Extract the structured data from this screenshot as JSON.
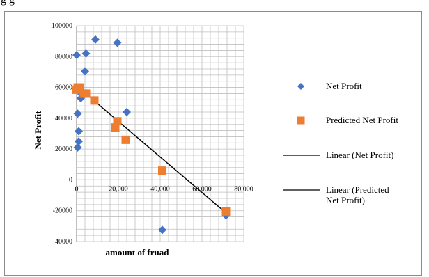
{
  "page": {
    "top_text": "g g"
  },
  "chart_data": {
    "type": "scatter",
    "title": "",
    "xlabel": "amount of fruad",
    "ylabel": "Net Profit",
    "xlim": [
      0,
      80000
    ],
    "ylim": [
      -40000,
      100000
    ],
    "x_ticks": [
      0,
      20000,
      40000,
      60000,
      80000
    ],
    "x_tick_labels": [
      "0",
      "20,000",
      "40,000",
      "60,000",
      "80,000"
    ],
    "y_ticks": [
      -40000,
      -20000,
      0,
      20000,
      40000,
      60000,
      80000,
      100000
    ],
    "y_tick_labels": [
      "-40000",
      "-20000",
      "0",
      "20000",
      "40000",
      "60000",
      "80000",
      "100000"
    ],
    "grid": true,
    "legend_position": "right",
    "colors": {
      "net_profit": "#4472C4",
      "predicted": "#ED7D31",
      "trendline": "#000000",
      "grid": "#bfbfbf"
    },
    "series": [
      {
        "name": "Net Profit",
        "marker": "diamond",
        "points": [
          [
            0,
            81000
          ],
          [
            4500,
            82000
          ],
          [
            9000,
            91000
          ],
          [
            19500,
            89000
          ],
          [
            4000,
            70500
          ],
          [
            1000,
            57500
          ],
          [
            2000,
            53000
          ],
          [
            500,
            43000
          ],
          [
            1000,
            31500
          ],
          [
            1000,
            25000
          ],
          [
            500,
            21000
          ],
          [
            24000,
            44000
          ],
          [
            41000,
            -32500
          ],
          [
            71500,
            -23000
          ]
        ]
      },
      {
        "name": "Predicted Net Profit",
        "marker": "square",
        "points": [
          [
            0,
            58500
          ],
          [
            500,
            60000
          ],
          [
            1500,
            60000
          ],
          [
            3500,
            56000
          ],
          [
            4500,
            56000
          ],
          [
            8500,
            51500
          ],
          [
            18500,
            34000
          ],
          [
            19500,
            38000
          ],
          [
            23500,
            26000
          ],
          [
            41000,
            6000
          ],
          [
            71500,
            -20500
          ]
        ]
      }
    ],
    "trendlines": [
      {
        "name": "Linear (Net Profit)",
        "from": [
          0,
          61000
        ],
        "to": [
          72000,
          -22000
        ]
      },
      {
        "name": "Linear (Predicted Net Profit)",
        "from": [
          0,
          61000
        ],
        "to": [
          72000,
          -22000
        ]
      }
    ],
    "legend": [
      {
        "label": "Net Profit",
        "kind": "diamond"
      },
      {
        "label": "Predicted Net Profit",
        "kind": "square"
      },
      {
        "label": "Linear (Net Profit)",
        "kind": "line"
      },
      {
        "label_lines": [
          "Linear (Predicted",
          "Net Profit)"
        ],
        "kind": "line"
      }
    ]
  }
}
